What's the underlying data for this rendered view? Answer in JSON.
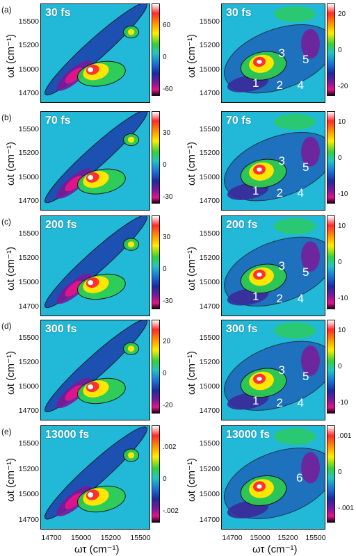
{
  "rows": [
    {
      "label": "(a)",
      "time": "30 fs",
      "left_cb": [
        "60",
        "0",
        "-60"
      ],
      "right_cb": [
        "20",
        "0",
        "-20"
      ],
      "peaks": [
        "1",
        "2",
        "3",
        "4",
        "5"
      ]
    },
    {
      "label": "(b)",
      "time": "70 fs",
      "left_cb": [
        "30",
        "0",
        "-30"
      ],
      "right_cb": [
        "10",
        "0",
        "-10"
      ],
      "peaks": [
        "1",
        "2",
        "3",
        "4",
        "5"
      ]
    },
    {
      "label": "(c)",
      "time": "200 fs",
      "left_cb": [
        "30",
        "0",
        "-30"
      ],
      "right_cb": [
        "10",
        "0",
        "-10"
      ],
      "peaks": [
        "1",
        "2",
        "3",
        "4",
        "5"
      ]
    },
    {
      "label": "(d)",
      "time": "300 fs",
      "left_cb": [
        "20",
        "0",
        "-20"
      ],
      "right_cb": [
        "10",
        "0",
        "-10"
      ],
      "peaks": [
        "1",
        "2",
        "3",
        "4",
        "5"
      ]
    },
    {
      "label": "(e)",
      "time": "13000 fs",
      "left_cb": [
        ".002",
        "0",
        "-.002"
      ],
      "right_cb": [
        ".001",
        "0",
        "-.001"
      ],
      "peaks": [
        "6"
      ]
    }
  ],
  "axes": {
    "y_label": "ωt (cm⁻¹)",
    "x_label": "ωτ (cm⁻¹)",
    "y_ticks": [
      "15500",
      "15200",
      "15000",
      "14700"
    ],
    "x_ticks": [
      "14700",
      "15000",
      "15200",
      "15500"
    ]
  },
  "colors": {
    "dark_blue": "#1b3aa8",
    "cyan": "#22b8d8",
    "green": "#2fcf4a",
    "yellow": "#ffe600",
    "red": "#ff3030",
    "magenta": "#e0148a"
  }
}
